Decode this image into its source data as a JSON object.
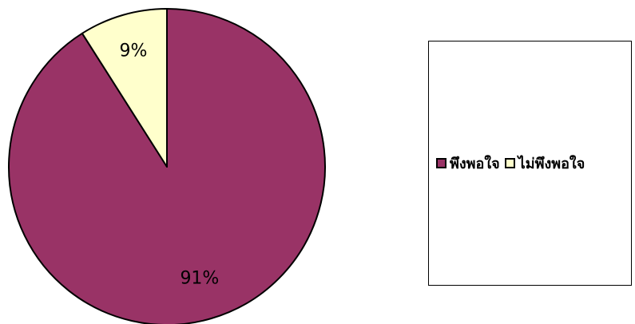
{
  "chart_data": {
    "type": "pie",
    "categories": [
      "พึงพอใจ",
      "ไม่พึงพอใจ"
    ],
    "values": [
      91,
      9
    ],
    "data_labels": [
      "91%",
      "9%"
    ],
    "colors": [
      "#993366",
      "#ffffcc"
    ],
    "legend_placement": "right",
    "start": "top, clockwise"
  }
}
